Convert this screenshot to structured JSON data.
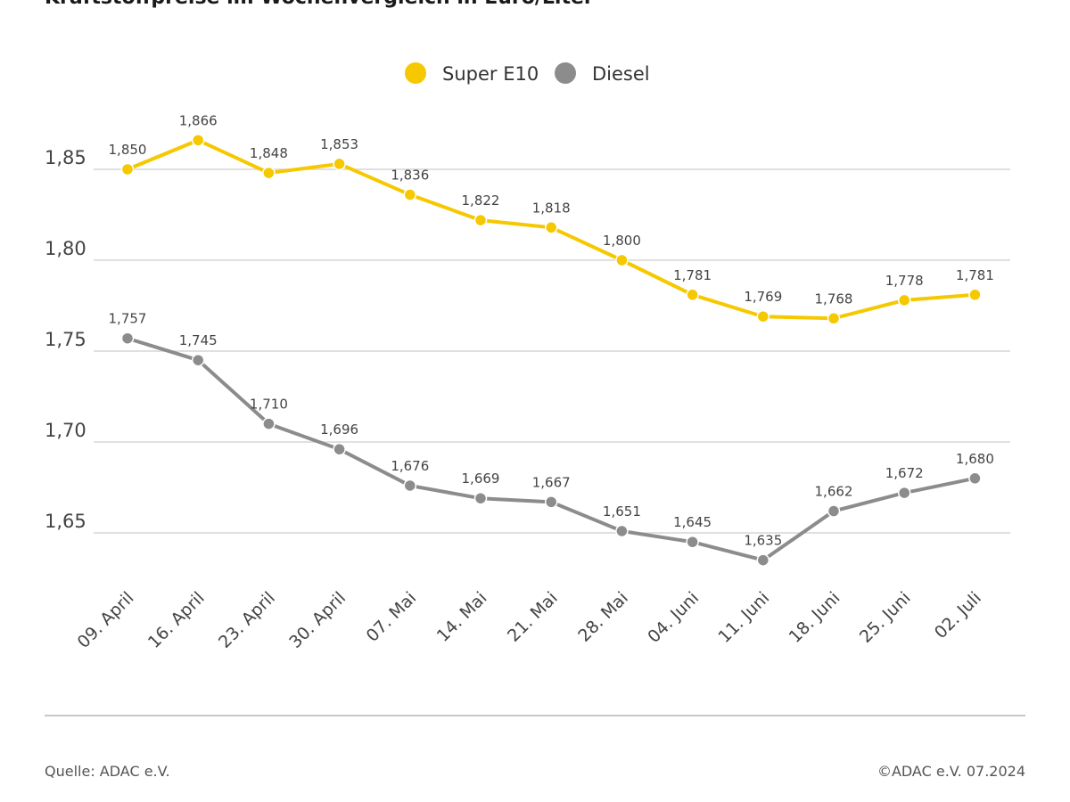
{
  "chart_data": {
    "type": "line",
    "title": "Kraftstoffpreise im Wochenvergleich in Euro/Liter",
    "categories": [
      "09. April",
      "16. April",
      "23. April",
      "30. April",
      "07. Mai",
      "14. Mai",
      "21. Mai",
      "28. Mai",
      "04. Juni",
      "11. Juni",
      "18. Juni",
      "25. Juni",
      "02. Juli"
    ],
    "series": [
      {
        "name": "Super E10",
        "color": "#f5c800",
        "values": [
          1.85,
          1.866,
          1.848,
          1.853,
          1.836,
          1.822,
          1.818,
          1.8,
          1.781,
          1.769,
          1.768,
          1.778,
          1.781
        ],
        "labels": [
          "1,850",
          "1,866",
          "1,848",
          "1,853",
          "1,836",
          "1,822",
          "1,818",
          "1,800",
          "1,781",
          "1,769",
          "1,768",
          "1,778",
          "1,781"
        ]
      },
      {
        "name": "Diesel",
        "color": "#8c8c8c",
        "values": [
          1.757,
          1.745,
          1.71,
          1.696,
          1.676,
          1.669,
          1.667,
          1.651,
          1.645,
          1.635,
          1.662,
          1.672,
          1.68
        ],
        "labels": [
          "1,757",
          "1,745",
          "1,710",
          "1,696",
          "1,676",
          "1,669",
          "1,667",
          "1,651",
          "1,645",
          "1,635",
          "1,662",
          "1,672",
          "1,680"
        ]
      }
    ],
    "yticks": [
      1.85,
      1.8,
      1.75,
      1.7,
      1.65
    ],
    "ytick_labels": [
      "1,85",
      "1,80",
      "1,75",
      "1,70",
      "1,65"
    ],
    "grid": true,
    "legend": "top-center"
  },
  "footer": {
    "source": "Quelle: ADAC e.V.",
    "copyright": "©ADAC e.V. 07.2024"
  }
}
